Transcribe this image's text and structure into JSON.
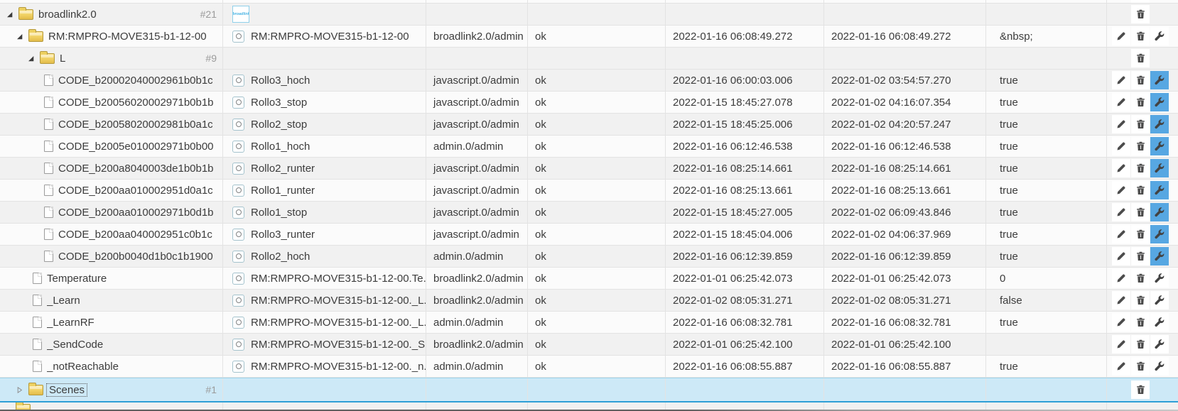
{
  "app": "object-tree-table",
  "colors": {
    "selection_bg": "#cde9f7",
    "selection_border_bottom": "#2f9fd6",
    "selection_border_top": "#9fd4ec",
    "config_active_bg": "#57a7e2",
    "row_alt_bg": "#f1f1f1",
    "gridline": "#e3e3e3",
    "count_text": "#9b9b9b"
  },
  "icons": {
    "expander_open": "triangle-expanded",
    "expander_closed": "triangle-collapsed",
    "folder": "folder-icon",
    "file": "file-icon",
    "state": "state-circle-icon",
    "logo": "broadlink-logo",
    "edit": "pencil-icon",
    "delete": "trash-icon",
    "config": "wrench-icon"
  },
  "logo_text": "broadlink",
  "rows": [
    {
      "type": "sliver",
      "shade": "w",
      "buttons": "trash-peek"
    },
    {
      "type": "folder",
      "level": "lvl0",
      "expander": "open",
      "name": "broadlink2.0",
      "count": "#21",
      "id_icon": "logo",
      "id_text": "",
      "from": "",
      "ack": "",
      "ts": "",
      "lc": "",
      "value": "",
      "buttons": "trash-only",
      "shade": "g",
      "selected": false
    },
    {
      "type": "channel",
      "level": "lvl1",
      "expander": "open",
      "name": "RM:RMPRO-MOVE315-b1-12-00",
      "count": "",
      "id_icon": "state",
      "id_text": "RM:RMPRO-MOVE315-b1-12-00",
      "from": "broadlink2.0/admin",
      "ack": "ok",
      "ts": "2022-01-16 06:08:49.272",
      "lc": "2022-01-16 06:08:49.272",
      "value": "&nbsp;",
      "buttons": "edit-trash-config",
      "shade": "w",
      "selected": false
    },
    {
      "type": "folder",
      "level": "lvl2",
      "expander": "open",
      "name": "L",
      "count": "#9",
      "id_icon": "",
      "id_text": "",
      "from": "",
      "ack": "",
      "ts": "",
      "lc": "",
      "value": "",
      "buttons": "trash-only",
      "shade": "g",
      "selected": false
    },
    {
      "type": "state",
      "level": "fil3",
      "expander": "",
      "name": "CODE_b20002040002961b0b1c",
      "count": "",
      "id_icon": "state",
      "id_text": "Rollo3_hoch",
      "from": "javascript.0/admin",
      "ack": "ok",
      "ts": "2022-01-16 06:00:03.006",
      "lc": "2022-01-02 03:54:57.270",
      "value": "true",
      "buttons": "edit-trash-configblue",
      "shade": "g",
      "selected": false
    },
    {
      "type": "state",
      "level": "fil3",
      "expander": "",
      "name": "CODE_b20056020002971b0b1b",
      "count": "",
      "id_icon": "state",
      "id_text": "Rollo3_stop",
      "from": "javascript.0/admin",
      "ack": "ok",
      "ts": "2022-01-15 18:45:27.078",
      "lc": "2022-01-02 04:16:07.354",
      "value": "true",
      "buttons": "edit-trash-configblue",
      "shade": "w",
      "selected": false
    },
    {
      "type": "state",
      "level": "fil3",
      "expander": "",
      "name": "CODE_b20058020002981b0a1c",
      "count": "",
      "id_icon": "state",
      "id_text": "Rollo2_stop",
      "from": "javascript.0/admin",
      "ack": "ok",
      "ts": "2022-01-15 18:45:25.006",
      "lc": "2022-01-02 04:20:57.247",
      "value": "true",
      "buttons": "edit-trash-configblue",
      "shade": "g",
      "selected": false
    },
    {
      "type": "state",
      "level": "fil3",
      "expander": "",
      "name": "CODE_b2005e010002971b0b00",
      "count": "",
      "id_icon": "state",
      "id_text": "Rollo1_hoch",
      "from": "admin.0/admin",
      "ack": "ok",
      "ts": "2022-01-16 06:12:46.538",
      "lc": "2022-01-16 06:12:46.538",
      "value": "true",
      "buttons": "edit-trash-configblue",
      "shade": "w",
      "selected": false
    },
    {
      "type": "state",
      "level": "fil3",
      "expander": "",
      "name": "CODE_b200a8040003de1b0b1b",
      "count": "",
      "id_icon": "state",
      "id_text": "Rollo2_runter",
      "from": "javascript.0/admin",
      "ack": "ok",
      "ts": "2022-01-16 08:25:14.661",
      "lc": "2022-01-16 08:25:14.661",
      "value": "true",
      "buttons": "edit-trash-configblue",
      "shade": "g",
      "selected": false
    },
    {
      "type": "state",
      "level": "fil3",
      "expander": "",
      "name": "CODE_b200aa010002951d0a1c",
      "count": "",
      "id_icon": "state",
      "id_text": "Rollo1_runter",
      "from": "javascript.0/admin",
      "ack": "ok",
      "ts": "2022-01-16 08:25:13.661",
      "lc": "2022-01-16 08:25:13.661",
      "value": "true",
      "buttons": "edit-trash-configblue",
      "shade": "w",
      "selected": false
    },
    {
      "type": "state",
      "level": "fil3",
      "expander": "",
      "name": "CODE_b200aa010002971b0d1b",
      "count": "",
      "id_icon": "state",
      "id_text": "Rollo1_stop",
      "from": "javascript.0/admin",
      "ack": "ok",
      "ts": "2022-01-15 18:45:27.005",
      "lc": "2022-01-02 06:09:43.846",
      "value": "true",
      "buttons": "edit-trash-configblue",
      "shade": "g",
      "selected": false
    },
    {
      "type": "state",
      "level": "fil3",
      "expander": "",
      "name": "CODE_b200aa040002951c0b1c",
      "count": "",
      "id_icon": "state",
      "id_text": "Rollo3_runter",
      "from": "javascript.0/admin",
      "ack": "ok",
      "ts": "2022-01-15 18:45:04.006",
      "lc": "2022-01-02 04:06:37.969",
      "value": "true",
      "buttons": "edit-trash-configblue",
      "shade": "w",
      "selected": false
    },
    {
      "type": "state",
      "level": "fil3",
      "expander": "",
      "name": "CODE_b200b0040d1b0c1b1900",
      "count": "",
      "id_icon": "state",
      "id_text": "Rollo2_hoch",
      "from": "admin.0/admin",
      "ack": "ok",
      "ts": "2022-01-16 06:12:39.859",
      "lc": "2022-01-16 06:12:39.859",
      "value": "true",
      "buttons": "edit-trash-configblue",
      "shade": "g",
      "selected": false
    },
    {
      "type": "state",
      "level": "fil1",
      "expander": "",
      "name": "Temperature",
      "count": "",
      "id_icon": "state",
      "id_text": "RM:RMPRO-MOVE315-b1-12-00.Te...",
      "from": "broadlink2.0/admin",
      "ack": "ok",
      "ts": "2022-01-01 06:25:42.073",
      "lc": "2022-01-01 06:25:42.073",
      "value": "0",
      "buttons": "edit-trash-config",
      "shade": "w",
      "selected": false
    },
    {
      "type": "state",
      "level": "fil1",
      "expander": "",
      "name": "_Learn",
      "count": "",
      "id_icon": "state",
      "id_text": "RM:RMPRO-MOVE315-b1-12-00._L...",
      "from": "broadlink2.0/admin",
      "ack": "ok",
      "ts": "2022-01-02 08:05:31.271",
      "lc": "2022-01-02 08:05:31.271",
      "value": "false",
      "buttons": "edit-trash-config",
      "shade": "g",
      "selected": false
    },
    {
      "type": "state",
      "level": "fil1",
      "expander": "",
      "name": "_LearnRF",
      "count": "",
      "id_icon": "state",
      "id_text": "RM:RMPRO-MOVE315-b1-12-00._L...",
      "from": "admin.0/admin",
      "ack": "ok",
      "ts": "2022-01-16 06:08:32.781",
      "lc": "2022-01-16 06:08:32.781",
      "value": "true",
      "buttons": "edit-trash-config",
      "shade": "w",
      "selected": false
    },
    {
      "type": "state",
      "level": "fil1",
      "expander": "",
      "name": "_SendCode",
      "count": "",
      "id_icon": "state",
      "id_text": "RM:RMPRO-MOVE315-b1-12-00._S...",
      "from": "broadlink2.0/admin",
      "ack": "ok",
      "ts": "2022-01-01 06:25:42.100",
      "lc": "2022-01-01 06:25:42.100",
      "value": "",
      "buttons": "edit-trash-config",
      "shade": "g",
      "selected": false
    },
    {
      "type": "state",
      "level": "fil1",
      "expander": "",
      "name": "_notReachable",
      "count": "",
      "id_icon": "state",
      "id_text": "RM:RMPRO-MOVE315-b1-12-00._n...",
      "from": "admin.0/admin",
      "ack": "ok",
      "ts": "2022-01-16 06:08:55.887",
      "lc": "2022-01-16 06:08:55.887",
      "value": "true",
      "buttons": "edit-trash-config",
      "shade": "w",
      "selected": false
    },
    {
      "type": "folder",
      "level": "lvl1",
      "expander": "closed",
      "name": "Scenes",
      "count": "#1",
      "id_icon": "",
      "id_text": "",
      "from": "",
      "ack": "",
      "ts": "",
      "lc": "",
      "value": "",
      "buttons": "trash-only",
      "shade": "",
      "selected": true
    },
    {
      "type": "peek",
      "level": "lvl1",
      "shade": "g"
    }
  ]
}
